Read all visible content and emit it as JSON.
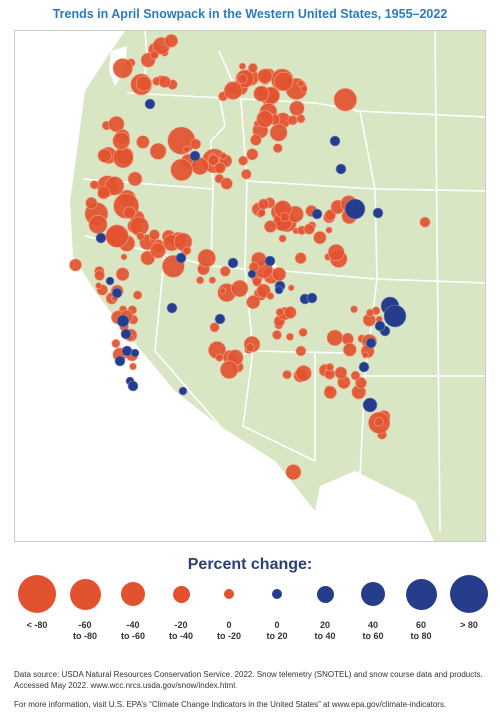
{
  "title": "Trends in April Snowpack in the Western United States, 1955–2022",
  "legend": {
    "title": "Percent change:",
    "items": [
      {
        "line1": "< -80",
        "line2": "",
        "color": "#e2522f",
        "size": 38
      },
      {
        "line1": "-60",
        "line2": "to -80",
        "color": "#e2522f",
        "size": 31
      },
      {
        "line1": "-40",
        "line2": "to -60",
        "color": "#e2522f",
        "size": 24
      },
      {
        "line1": "-20",
        "line2": "to -40",
        "color": "#e2522f",
        "size": 17
      },
      {
        "line1": "0",
        "line2": "to -20",
        "color": "#e2522f",
        "size": 10
      },
      {
        "line1": "0",
        "line2": "to 20",
        "color": "#263d8c",
        "size": 10
      },
      {
        "line1": "20",
        "line2": "to 40",
        "color": "#263d8c",
        "size": 17
      },
      {
        "line1": "40",
        "line2": "to 60",
        "color": "#263d8c",
        "size": 24
      },
      {
        "line1": "60",
        "line2": "to 80",
        "color": "#263d8c",
        "size": 31
      },
      {
        "line1": "> 80",
        "line2": "",
        "color": "#263d8c",
        "size": 38
      }
    ]
  },
  "footnotes": {
    "source": "Data source: USDA Natural Resources Conservation Service. 2022. Snow telemetry (SNOTEL) and snow course data and products. Accessed May 2022. www.wcc.nrcs.usda.gov/snow/index.html.",
    "more_info": "For more information, visit U.S. EPA’s “Climate Change Indicators in the United States” at www.epa.gov/climate-indicators."
  },
  "colors": {
    "decline": "#e2522f",
    "increase": "#263d8c",
    "land": "#d8e6c4",
    "water": "#ffffff",
    "border": "#ffffff"
  }
}
